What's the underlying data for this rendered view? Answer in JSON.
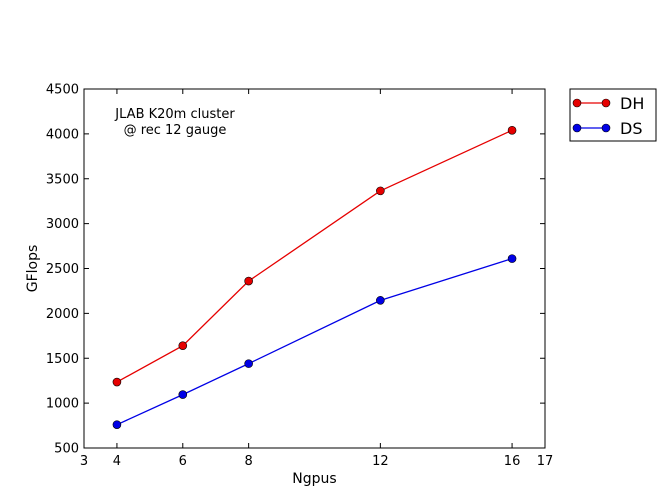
{
  "chart_data": {
    "type": "line",
    "title": "",
    "xlabel": "Ngpus",
    "ylabel": "GFlops",
    "xlim": [
      3,
      17
    ],
    "ylim": [
      500,
      4500
    ],
    "xticks": [
      "3",
      "4",
      "6",
      "8",
      "12",
      "16",
      "17"
    ],
    "yticks": [
      "500",
      "1000",
      "1500",
      "2000",
      "2500",
      "3000",
      "3500",
      "4000",
      "4500"
    ],
    "x": [
      4,
      6,
      8,
      12,
      16
    ],
    "series": [
      {
        "name": "DH",
        "color": "#e60000",
        "values": [
          1235,
          1640,
          2360,
          3365,
          4040
        ]
      },
      {
        "name": "DS",
        "color": "#0000e6",
        "values": [
          760,
          1095,
          1440,
          2145,
          2610
        ]
      }
    ],
    "annotation": [
      "JLAB K20m cluster",
      "@ rec 12 gauge"
    ],
    "grid": false,
    "legend": "outside-top-right"
  }
}
